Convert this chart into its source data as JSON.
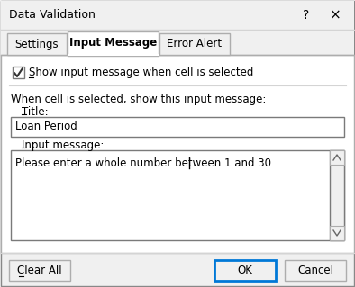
{
  "title": "Data Validation",
  "question_mark": "?",
  "close_x": "×",
  "tabs": [
    "Settings",
    "Input Message",
    "Error Alert"
  ],
  "active_tab": 1,
  "checkbox_text": "Show input message when cell is selected",
  "checkbox_checked": true,
  "description_text": "When cell is selected, show this input message:",
  "title_label": "Title:",
  "title_value": "Loan Period",
  "msg_label": "Input message:",
  "msg_value": "Please enter a whole number between 1 and 30.",
  "btn_clear": "Clear All",
  "btn_ok": "OK",
  "btn_cancel": "Cancel",
  "bg_color": "#f0f0f0",
  "white": "#ffffff",
  "text_color": "#000000",
  "ok_border_color": "#0078d7",
  "tab_border_color": "#adadad",
  "input_border": "#7a7a7a",
  "btn_border": "#adadad",
  "sep_color": "#d4d4d4",
  "scrollbar_bg": "#f0f0f0",
  "scrollbar_btn": "#c8c8c8"
}
